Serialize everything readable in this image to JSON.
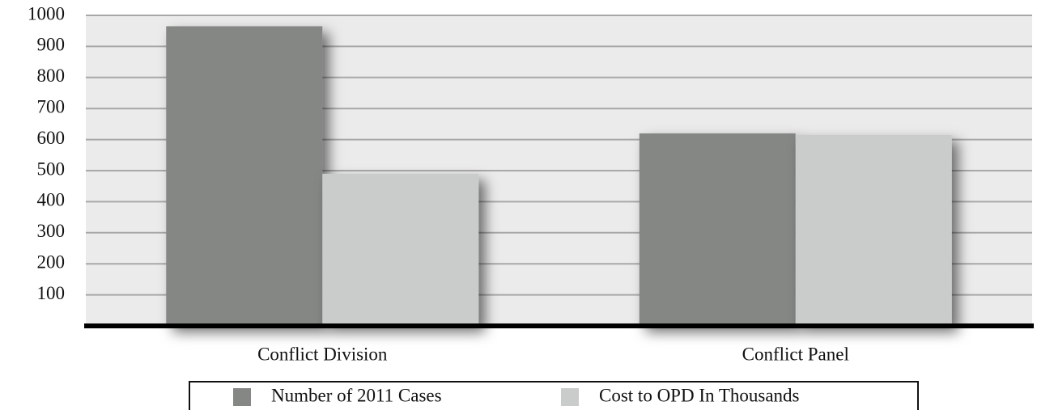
{
  "chart_data": {
    "type": "bar",
    "categories": [
      "Conflict Division",
      "Conflict Panel"
    ],
    "series": [
      {
        "name": "Number of 2011 Cases",
        "color": "#858785",
        "values": [
          965,
          620
        ]
      },
      {
        "name": "Cost to OPD In Thousands",
        "color": "#cacccb",
        "values": [
          490,
          615
        ]
      }
    ],
    "ylim": [
      0,
      1000
    ],
    "yticks": [
      100,
      200,
      300,
      400,
      500,
      600,
      700,
      800,
      900,
      1000
    ],
    "grid": true
  }
}
